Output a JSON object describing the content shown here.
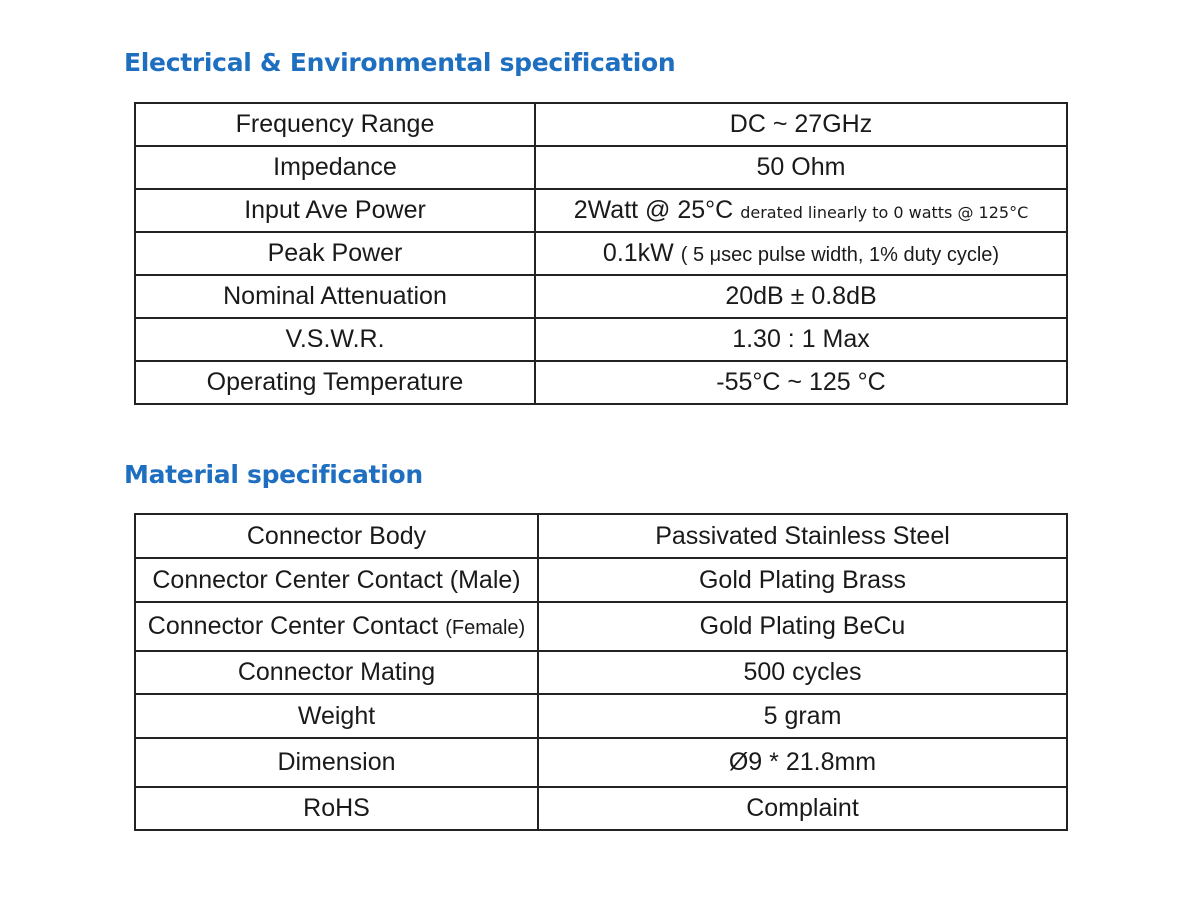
{
  "electrical": {
    "title": "Electrical & Environmental specification",
    "rows": [
      {
        "label": "Frequency Range",
        "value": "DC ~ 27GHz"
      },
      {
        "label": "Impedance",
        "value": "50 Ohm"
      },
      {
        "label": "Input Ave Power",
        "value": "2Watt @ 25°C",
        "note": "derated linearly to 0 watts @ 125°C"
      },
      {
        "label": "Peak Power",
        "value": "0.1kW",
        "note": "( 5 μsec pulse width, 1% duty cycle)"
      },
      {
        "label": "Nominal Attenuation",
        "value": "20dB ± 0.8dB"
      },
      {
        "label": "V.S.W.R.",
        "value": "1.30 : 1 Max"
      },
      {
        "label": "Operating Temperature",
        "value": "-55°C ~ 125 °C"
      }
    ]
  },
  "material": {
    "title": "Material specification",
    "rows": [
      {
        "label": "Connector Body",
        "value": "Passivated Stainless Steel"
      },
      {
        "label": "Connector Center Contact",
        "label_suffix": "(Male)",
        "value": "Gold Plating Brass"
      },
      {
        "label": "Connector Center Contact",
        "label_suffix": "(Female)",
        "value": "Gold Plating BeCu"
      },
      {
        "label": "Connector Mating",
        "value": "500 cycles"
      },
      {
        "label": "Weight",
        "value": "5 gram"
      },
      {
        "label": "Dimension",
        "value": "Ø9 * 21.8mm"
      },
      {
        "label": "RoHS",
        "value": "Complaint"
      }
    ]
  }
}
